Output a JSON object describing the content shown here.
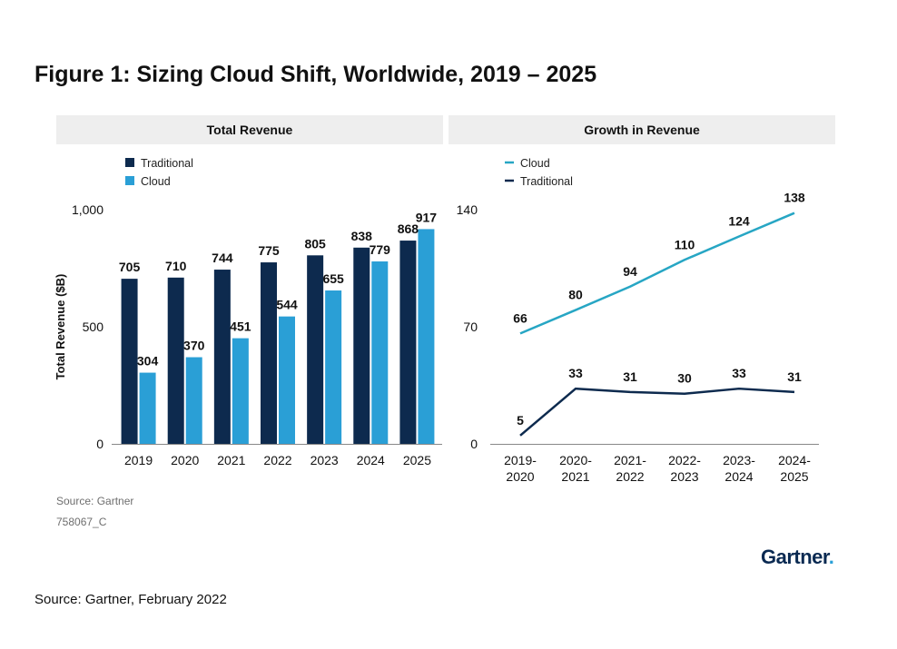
{
  "figure": {
    "title": "Figure 1: Sizing Cloud Shift, Worldwide, 2019 – 2025",
    "source_note": "Source: Gartner",
    "code": "758067_C",
    "footer": "Source: Gartner, February 2022",
    "logo": "Gartner",
    "logo_dot": "."
  },
  "colors": {
    "traditional": "#0d2a4e",
    "cloud": "#2a9fd6",
    "cloud_line": "#27a6c4",
    "panel_header": "#eeeeee"
  },
  "chart_data": [
    {
      "type": "bar",
      "title": "Total Revenue",
      "ylabel": "Total Revenue ($B)",
      "xlabel": "",
      "categories": [
        "2019",
        "2020",
        "2021",
        "2022",
        "2023",
        "2024",
        "2025"
      ],
      "series": [
        {
          "name": "Traditional",
          "values": [
            705,
            710,
            744,
            775,
            805,
            838,
            868
          ]
        },
        {
          "name": "Cloud",
          "values": [
            304,
            370,
            451,
            544,
            655,
            779,
            917
          ]
        }
      ],
      "ylim": [
        0,
        1150
      ],
      "yticks": [
        0,
        500,
        1000
      ],
      "ytick_labels": [
        "0",
        "500",
        "1,000"
      ],
      "legend_position": "top-left",
      "grid": false
    },
    {
      "type": "line",
      "title": "Growth in Revenue",
      "ylabel": "",
      "xlabel": "",
      "categories": [
        "2019-2020",
        "2020-2021",
        "2021-2022",
        "2022-2023",
        "2023-2024",
        "2024-2025"
      ],
      "category_lines": [
        [
          "2019-",
          "2020"
        ],
        [
          "2020-",
          "2021"
        ],
        [
          "2021-",
          "2022"
        ],
        [
          "2022-",
          "2023"
        ],
        [
          "2023-",
          "2024"
        ],
        [
          "2024-",
          "2025"
        ]
      ],
      "series": [
        {
          "name": "Cloud",
          "values": [
            66,
            80,
            94,
            110,
            124,
            138
          ]
        },
        {
          "name": "Traditional",
          "values": [
            5,
            33,
            31,
            30,
            33,
            31
          ]
        }
      ],
      "ylim": [
        0,
        160
      ],
      "yticks": [
        0,
        70,
        140
      ],
      "ytick_labels": [
        "0",
        "70",
        "140"
      ],
      "legend_position": "top-left",
      "grid": false
    }
  ]
}
